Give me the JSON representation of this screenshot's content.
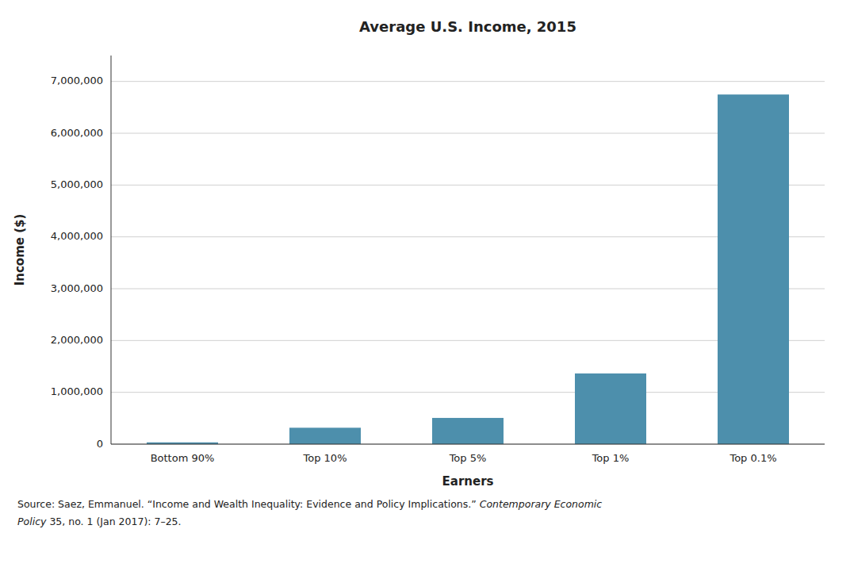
{
  "chart_data": {
    "type": "bar",
    "title": "Average U.S. Income, 2015",
    "x_label": "Earners",
    "y_label": "Income ($)",
    "categories": [
      "Bottom 90%",
      "Top 10%",
      "Top 5%",
      "Top 1%",
      "Top 0.1%"
    ],
    "values": [
      34074,
      316379,
      506051,
      1364669,
      6747439
    ],
    "color": "#4d8fac",
    "ylim": [
      0,
      7500000
    ],
    "yticks": [
      0,
      {
        "value": 1000000,
        "label": "1,000,000"
      },
      {
        "value": 2000000,
        "label": "2,000,000"
      },
      {
        "value": 3000000,
        "label": "3,000,000"
      },
      {
        "value": 4000000,
        "label": "4,000,000"
      },
      {
        "value": 5000000,
        "label": "5,000,000"
      },
      {
        "value": 6000000,
        "label": "6,000,000"
      },
      {
        "value": 7000000,
        "label": "7,000,000"
      }
    ],
    "grid": true,
    "annotations": [
      "Source: Saez, Emmanuel. “Income and Wealth Inequality: Evidence and Policy Implications.” ",
      "Contemporary Economic",
      "Policy",
      " 35, no. 1 (Jan 2017): 7–25."
    ]
  }
}
